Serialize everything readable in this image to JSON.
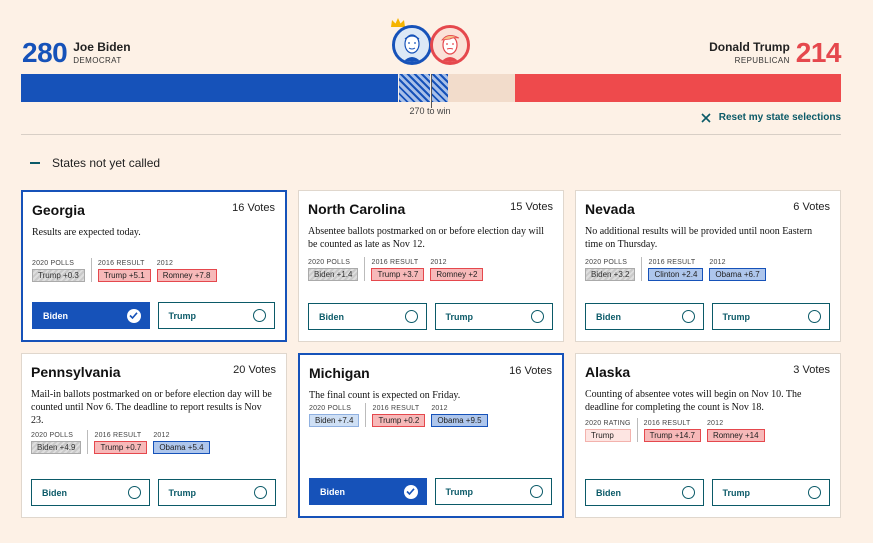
{
  "header": {
    "biden": {
      "ev": "280",
      "name": "Joe Biden",
      "party": "DEMOCRAT"
    },
    "trump": {
      "ev": "214",
      "name": "Donald Trump",
      "party": "REPUBLICAN"
    },
    "to_win": "270 to win",
    "reset_label": "Reset my state selections"
  },
  "section": {
    "label": "States not yet called"
  },
  "colors": {
    "biden_blue": "#1652b9",
    "trump_red": "#ee4a4c",
    "teal": "#0b5a68",
    "background": "#fdf1e6"
  },
  "states": [
    {
      "name": "Georgia",
      "votes": "16 Votes",
      "note": "Results are expected today.",
      "history": [
        {
          "label": "2020 POLLS",
          "value": "Trump +0.3",
          "style": "gray"
        },
        {
          "label": "2016 RESULT",
          "value": "Trump +5.1",
          "style": "red"
        },
        {
          "label": "2012",
          "value": "Romney +7.8",
          "style": "red"
        }
      ],
      "biden_label": "Biden",
      "trump_label": "Trump",
      "selected": "biden"
    },
    {
      "name": "North Carolina",
      "votes": "15 Votes",
      "note": "Absentee ballots postmarked on or before election day will be counted as late as Nov 12.",
      "history": [
        {
          "label": "2020 POLLS",
          "value": "Biden +1.4",
          "style": "gray"
        },
        {
          "label": "2016 RESULT",
          "value": "Trump +3.7",
          "style": "red"
        },
        {
          "label": "2012",
          "value": "Romney +2",
          "style": "red"
        }
      ],
      "biden_label": "Biden",
      "trump_label": "Trump",
      "selected": "none"
    },
    {
      "name": "Nevada",
      "votes": "6 Votes",
      "note": "No additional results will be provided until noon Eastern time on Thursday.",
      "history": [
        {
          "label": "2020 POLLS",
          "value": "Biden +3.2",
          "style": "gray"
        },
        {
          "label": "2016 RESULT",
          "value": "Clinton +2.4",
          "style": "blue"
        },
        {
          "label": "2012",
          "value": "Obama +6.7",
          "style": "blue"
        }
      ],
      "biden_label": "Biden",
      "trump_label": "Trump",
      "selected": "none"
    },
    {
      "name": "Pennsylvania",
      "votes": "20 Votes",
      "note": "Mail-in ballots postmarked on or before election day will be counted until Nov 6. The deadline to report results is Nov 23.",
      "history": [
        {
          "label": "2020 POLLS",
          "value": "Biden +4.9",
          "style": "gray"
        },
        {
          "label": "2016 RESULT",
          "value": "Trump +0.7",
          "style": "red"
        },
        {
          "label": "2012",
          "value": "Obama +5.4",
          "style": "blue"
        }
      ],
      "biden_label": "Biden",
      "trump_label": "Trump",
      "selected": "none"
    },
    {
      "name": "Michigan",
      "votes": "16 Votes",
      "note": "The final count is expected on Friday.",
      "history": [
        {
          "label": "2020 POLLS",
          "value": "Biden +7.4",
          "style": "lightblue"
        },
        {
          "label": "2016 RESULT",
          "value": "Trump +0.2",
          "style": "red"
        },
        {
          "label": "2012",
          "value": "Obama +9.5",
          "style": "blue"
        }
      ],
      "biden_label": "Biden",
      "trump_label": "Trump",
      "selected": "biden"
    },
    {
      "name": "Alaska",
      "votes": "3 Votes",
      "note": "Counting of absentee votes will begin on Nov 10. The deadline for completing the count is Nov 18.",
      "history": [
        {
          "label": "2020 RATING",
          "value": "Trump",
          "style": "pinkred"
        },
        {
          "label": "2016 RESULT",
          "value": "Trump +14.7",
          "style": "red"
        },
        {
          "label": "2012",
          "value": "Romney +14",
          "style": "red"
        }
      ],
      "biden_label": "Biden",
      "trump_label": "Trump",
      "selected": "none"
    }
  ]
}
